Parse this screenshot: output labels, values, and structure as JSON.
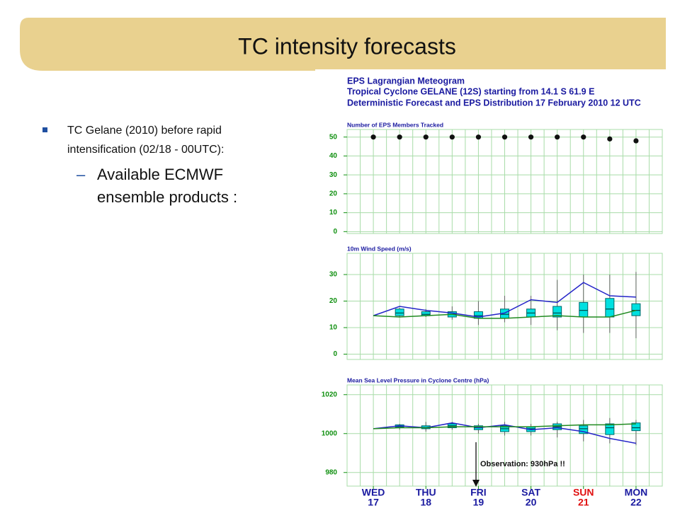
{
  "slide": {
    "title": "TC intensity forecasts",
    "bullet": [
      "TC Gelane (2010) before rapid",
      "intensification (02/18 - 00UTC):"
    ],
    "sub_bullet": [
      "Available ECMWF",
      "ensemble products :"
    ]
  },
  "meteogram_title": [
    "EPS Lagrangian Meteogram",
    "Tropical Cyclone GELANE (12S) starting from 14.1 S  61.9 E",
    "Deterministic Forecast and EPS Distribution 17 February 2010 12 UTC"
  ],
  "chart_data": [
    {
      "type": "dot",
      "title": "Number of EPS Members Tracked",
      "values": [
        50,
        50,
        50,
        50,
        50,
        50,
        50,
        50,
        50,
        49,
        48
      ],
      "color": "#111111",
      "ylim": [
        -1,
        54
      ],
      "yticks": [
        0,
        10,
        20,
        30,
        40,
        50
      ],
      "grid": true,
      "grid_color": "#a8dca8"
    },
    {
      "type": "box",
      "title": "10m Wind Speed (m/s)",
      "lines": [
        {
          "color": "#2424c8",
          "values": [
            14.5,
            18,
            16.5,
            15.5,
            14,
            15.5,
            20.5,
            19.5,
            27,
            22,
            21.5
          ]
        },
        {
          "color": "#208a20",
          "values": [
            14.5,
            14,
            14.5,
            15,
            13.5,
            13.5,
            14,
            14.5,
            14,
            14,
            16.5
          ]
        }
      ],
      "boxes": {
        "color": "#00e0e0",
        "min": [
          null,
          14,
          14,
          13,
          11,
          12,
          11,
          9,
          8,
          8,
          6
        ],
        "q1": [
          null,
          14.5,
          14.5,
          14,
          13.5,
          13.5,
          14,
          14,
          14,
          14,
          14.5
        ],
        "median": [
          null,
          15.5,
          15,
          15,
          14.5,
          15,
          15.5,
          15.5,
          16.5,
          17,
          16.5
        ],
        "q3": [
          null,
          17,
          16,
          16,
          16,
          17,
          17,
          18,
          19.5,
          21,
          19
        ],
        "max": [
          null,
          17.5,
          17,
          18,
          20,
          22,
          22,
          28,
          30,
          30,
          31
        ]
      },
      "ylim": [
        -2,
        38
      ],
      "yticks": [
        0,
        10,
        20,
        30
      ],
      "grid": true,
      "grid_color": "#a8dca8"
    },
    {
      "type": "box",
      "title": "Mean Sea Level Pressure in Cyclone Centre (hPa)",
      "annotation": "Observation: 930hPa !!",
      "categories": [
        "WED",
        null,
        "THU",
        null,
        "FRI",
        null,
        "SAT",
        null,
        "SUN",
        null,
        "MON"
      ],
      "dates": [
        17,
        null,
        18,
        null,
        19,
        null,
        20,
        null,
        21,
        null,
        22
      ],
      "label_colors": [
        "#1a1aa0",
        null,
        "#1a1aa0",
        null,
        "#1a1aa0",
        null,
        "#1a1aa0",
        null,
        "#e01010",
        null,
        "#1a1aa0"
      ],
      "lines": [
        {
          "color": "#2424c8",
          "values": [
            1002.5,
            1004,
            1003,
            1005.5,
            1003,
            1004.5,
            1002,
            1003,
            1001,
            997.5,
            995
          ]
        },
        {
          "color": "#208a20",
          "values": [
            1002.5,
            1003,
            1003,
            1003.5,
            1003.5,
            1003.5,
            1003.5,
            1004,
            1004.5,
            1004.5,
            1005
          ]
        }
      ],
      "boxes": {
        "color": "#00e0e0",
        "min": [
          null,
          1002,
          1001,
          1002,
          1000,
          999,
          999,
          998,
          996,
          995,
          994
        ],
        "q1": [
          null,
          1003,
          1002.5,
          1003,
          1002,
          1001,
          1001,
          1002,
          1000,
          999.5,
          1001.5
        ],
        "median": [
          null,
          1003.5,
          1003,
          1004,
          1003,
          1002.5,
          1002.5,
          1003.5,
          1002.5,
          1003,
          1003
        ],
        "q3": [
          null,
          1004.5,
          1004,
          1005,
          1004,
          1004,
          1003.5,
          1005,
          1004,
          1005,
          1005.5
        ],
        "max": [
          null,
          1005,
          1006,
          1006,
          1005,
          1006,
          1005,
          1006,
          1007,
          1008,
          1007
        ]
      },
      "ylim": [
        973,
        1025
      ],
      "yticks": [
        980,
        1000,
        1020
      ],
      "grid": true,
      "grid_color": "#a8dca8"
    }
  ]
}
